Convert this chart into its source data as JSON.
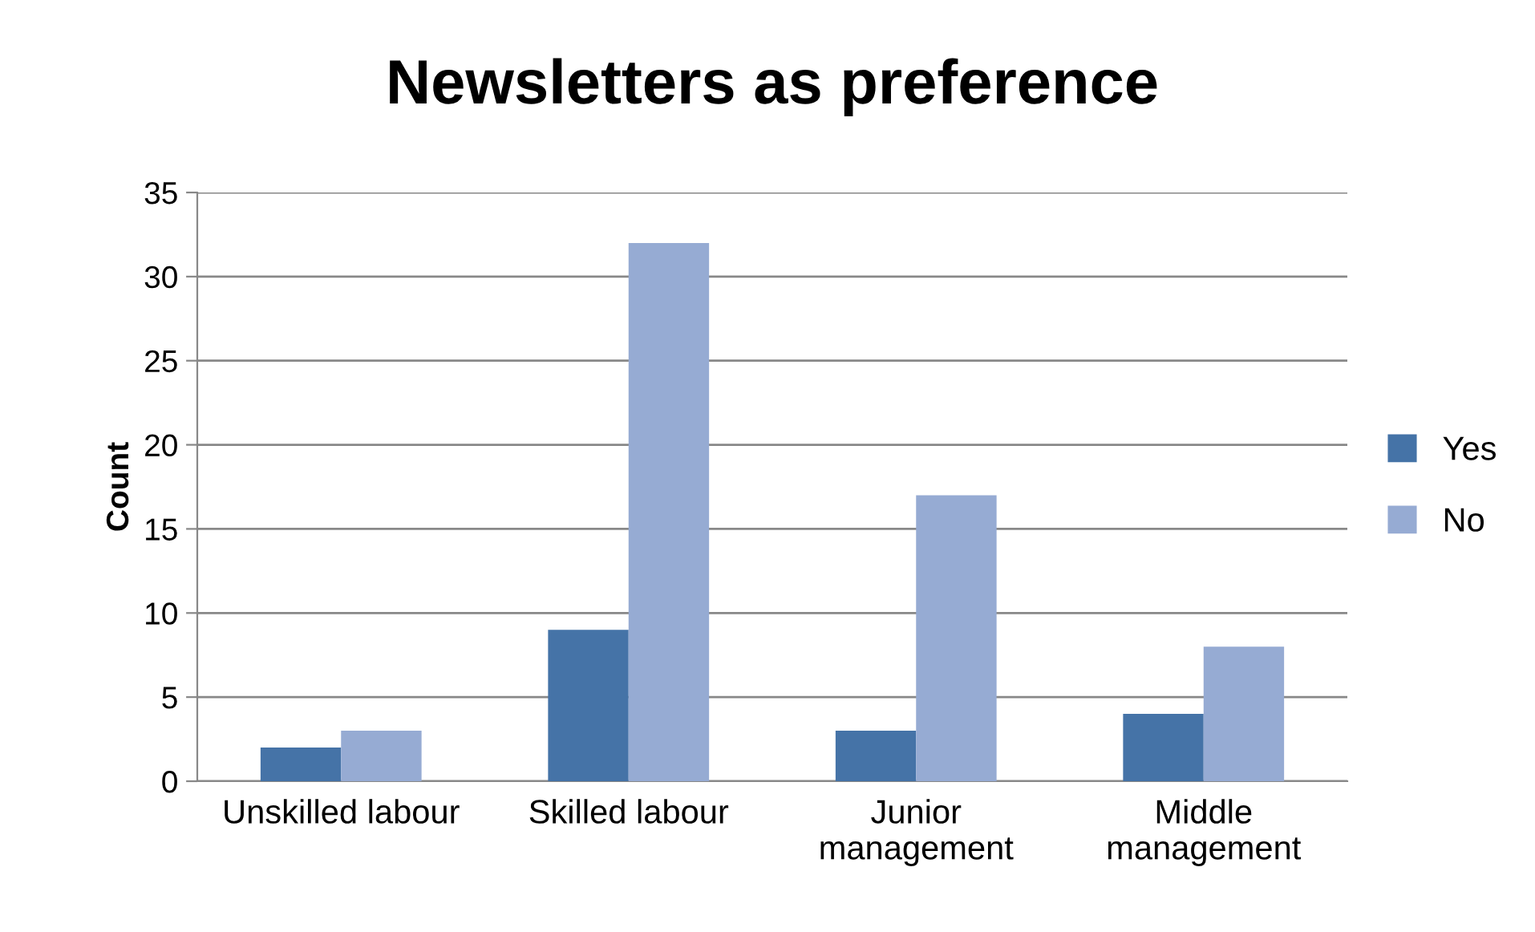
{
  "chart_data": {
    "type": "bar",
    "title": "Newsletters as preference",
    "ylabel": "Count",
    "categories": [
      "Unskilled labour",
      "Skilled labour",
      "Junior\nmanagement",
      "Middle\nmanagement"
    ],
    "series": [
      {
        "name": "Yes",
        "color": "#4573a7",
        "values": [
          2,
          9,
          3,
          4
        ]
      },
      {
        "name": "No",
        "color": "#96abd3",
        "values": [
          3,
          32,
          17,
          8
        ]
      }
    ],
    "ylim": [
      0,
      35
    ],
    "yticks": [
      0,
      5,
      10,
      15,
      20,
      25,
      30,
      35
    ],
    "grid": "y",
    "legend": "right"
  }
}
